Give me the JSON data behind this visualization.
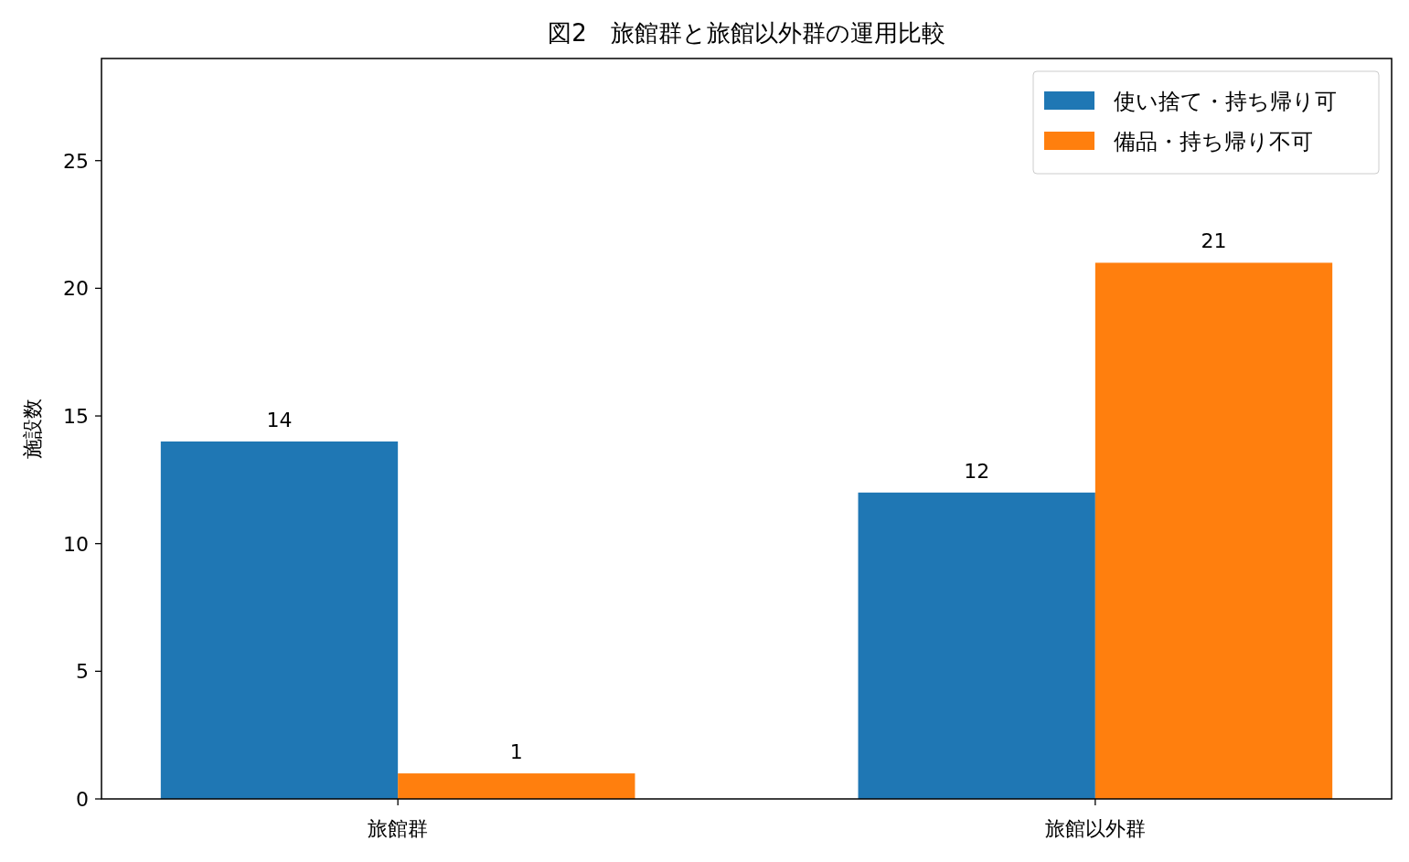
{
  "chart_data": {
    "type": "bar",
    "title": "図2　旅館群と旅館以外群の運用比較",
    "ylabel": "施設数",
    "categories": [
      "旅館群",
      "旅館以外群"
    ],
    "series": [
      {
        "name": "使い捨て・持ち帰り可",
        "color": "#1f77b4",
        "values": [
          14,
          12
        ]
      },
      {
        "name": "備品・持ち帰り不可",
        "color": "#ff7f0e",
        "values": [
          1,
          21
        ]
      }
    ],
    "ylim": [
      0,
      29
    ],
    "yticks": [
      0,
      5,
      10,
      15,
      20,
      25
    ],
    "data_labels": true,
    "legend": "top right",
    "grid": false
  }
}
